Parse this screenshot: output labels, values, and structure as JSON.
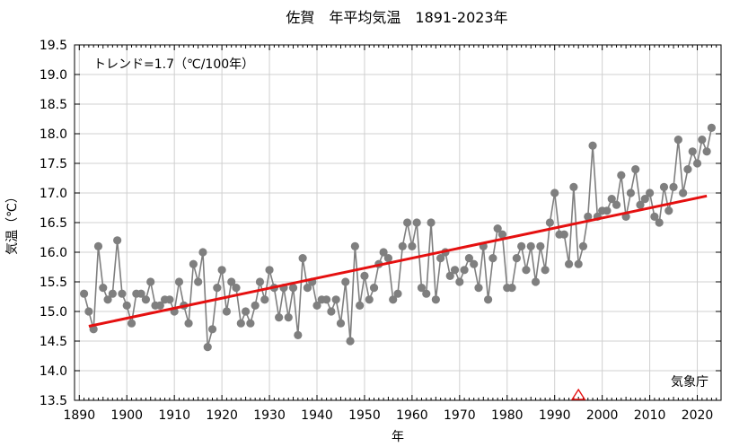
{
  "chart_data": {
    "type": "line",
    "title": "佐賀　年平均気温　1891-2023年",
    "xlabel": "年",
    "ylabel": "気温（℃）",
    "xlim": [
      1889,
      2025
    ],
    "ylim": [
      13.5,
      19.5
    ],
    "xticks": [
      1890,
      1900,
      1910,
      1920,
      1930,
      1940,
      1950,
      1960,
      1970,
      1980,
      1990,
      2000,
      2010,
      2020
    ],
    "yticks": [
      13.5,
      14.0,
      14.5,
      15.0,
      15.5,
      16.0,
      16.5,
      17.0,
      17.5,
      18.0,
      18.5,
      19.0,
      19.5
    ],
    "grid": true,
    "trend_label": "トレンド=1.7（℃/100年）",
    "source_label": "気象庁",
    "marker_year": 1995,
    "colors": {
      "series": "#7f7f7f",
      "trend": "#e51010",
      "marker": "#e51010",
      "grid": "#d0d0d0"
    },
    "series": [
      {
        "x": [
          1891,
          1892,
          1893,
          1894,
          1895,
          1896,
          1897,
          1898,
          1899,
          1900,
          1901,
          1902,
          1903,
          1904,
          1905,
          1906,
          1907,
          1908,
          1909,
          1910,
          1911,
          1912,
          1913,
          1914,
          1915,
          1916,
          1917,
          1918,
          1919,
          1920,
          1921,
          1922,
          1923,
          1924,
          1925,
          1926,
          1927,
          1928,
          1929,
          1930,
          1931,
          1932,
          1933,
          1934,
          1935,
          1936,
          1937,
          1938,
          1939,
          1940,
          1941,
          1942,
          1943,
          1944,
          1945,
          1946,
          1947,
          1948,
          1949,
          1950,
          1951,
          1952,
          1953,
          1954,
          1955,
          1956,
          1957,
          1958,
          1959,
          1960,
          1961,
          1962,
          1963,
          1964,
          1965,
          1966,
          1967,
          1968,
          1969,
          1970,
          1971,
          1972,
          1973,
          1974,
          1975,
          1976,
          1977,
          1978,
          1979,
          1980,
          1981,
          1982,
          1983,
          1984,
          1985,
          1986,
          1987,
          1988,
          1989,
          1990,
          1991,
          1992,
          1993,
          1994,
          1995,
          1996,
          1997,
          1998,
          1999,
          2000,
          2001,
          2002,
          2003,
          2004,
          2005,
          2006,
          2007,
          2008,
          2009,
          2010,
          2011,
          2012,
          2013,
          2014,
          2015,
          2016,
          2017,
          2018,
          2019,
          2020,
          2021,
          2022,
          2023
        ],
        "values": [
          15.3,
          15.0,
          14.7,
          16.1,
          15.4,
          15.2,
          15.3,
          16.2,
          15.3,
          15.1,
          14.8,
          15.3,
          15.3,
          15.2,
          15.5,
          15.1,
          15.1,
          15.2,
          15.2,
          15.0,
          15.5,
          15.1,
          14.8,
          15.8,
          15.5,
          16.0,
          14.4,
          14.7,
          15.4,
          15.7,
          15.0,
          15.5,
          15.4,
          14.8,
          15.0,
          14.8,
          15.1,
          15.5,
          15.2,
          15.7,
          15.4,
          14.9,
          15.4,
          14.9,
          15.4,
          14.6,
          15.9,
          15.4,
          15.5,
          15.1,
          15.2,
          15.2,
          15.0,
          15.2,
          14.8,
          15.5,
          14.5,
          16.1,
          15.1,
          15.6,
          15.2,
          15.4,
          15.8,
          16.0,
          15.9,
          15.2,
          15.3,
          16.1,
          16.5,
          16.1,
          16.5,
          15.4,
          15.3,
          16.5,
          15.2,
          15.9,
          16.0,
          15.6,
          15.7,
          15.5,
          15.7,
          15.9,
          15.8,
          15.4,
          16.1,
          15.2,
          15.9,
          16.4,
          16.3,
          15.4,
          15.4,
          15.9,
          16.1,
          15.7,
          16.1,
          15.5,
          16.1,
          15.7,
          16.5,
          17.0,
          16.3,
          16.3,
          15.8,
          17.1,
          15.8,
          16.1,
          16.6,
          17.8,
          16.6,
          16.7,
          16.7,
          16.9,
          16.8,
          17.3,
          16.6,
          17.0,
          17.4,
          16.8,
          16.9,
          17.0,
          16.6,
          16.5,
          17.1,
          16.7,
          17.1,
          17.9,
          17.0,
          17.4,
          17.7,
          17.5,
          17.9,
          17.7,
          18.1
        ]
      }
    ],
    "trend": {
      "x": [
        1892,
        2022
      ],
      "values": [
        14.75,
        16.95
      ]
    }
  }
}
